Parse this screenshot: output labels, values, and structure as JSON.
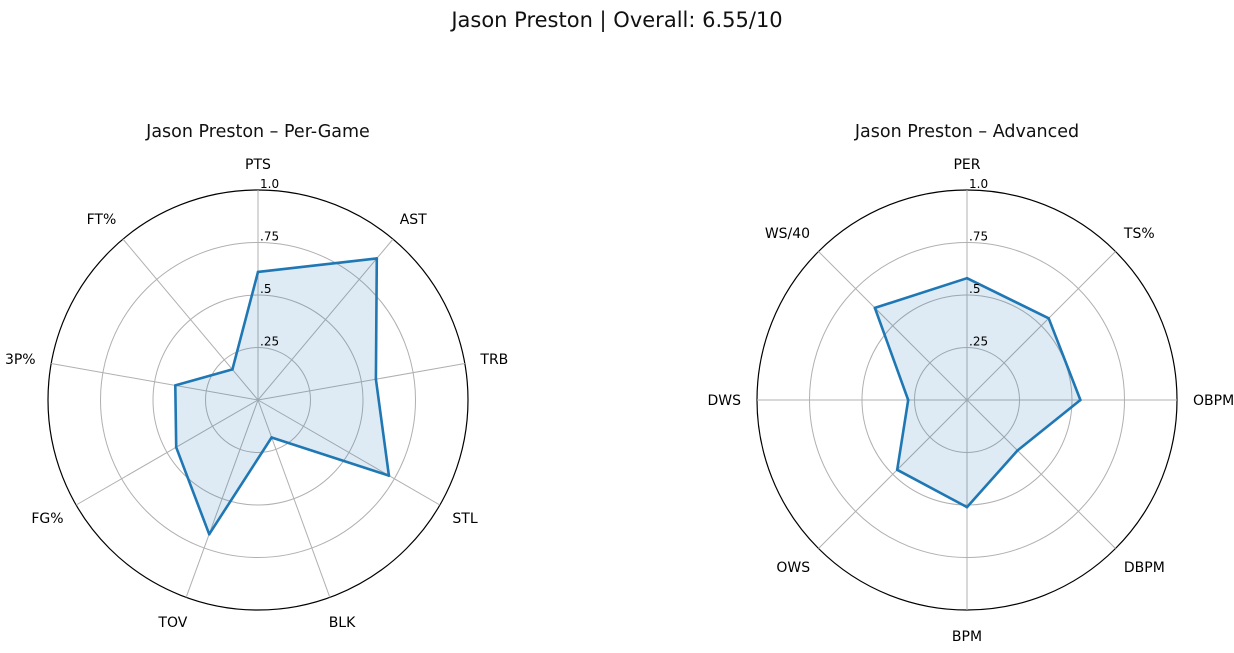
{
  "figure": {
    "title": "Jason Preston | Overall: 6.55/10"
  },
  "chart_data": [
    {
      "type": "radar",
      "title": "Jason Preston – Per-Game",
      "categories": [
        "PTS",
        "AST",
        "TRB",
        "STL",
        "BLK",
        "TOV",
        "FG%",
        "3P%",
        "FT%"
      ],
      "values": [
        0.61,
        0.88,
        0.57,
        0.72,
        0.19,
        0.68,
        0.45,
        0.4,
        0.19
      ],
      "rlim": [
        0,
        1.0
      ],
      "rticks": [
        0.25,
        0.5,
        0.75,
        1.0
      ],
      "rtick_labels": [
        ".25",
        ".5",
        ".75",
        "1.0"
      ],
      "grid": true,
      "color": "#1f77b4",
      "fill_color": "#1f77b4",
      "fill_opacity": 0.15
    },
    {
      "type": "radar",
      "title": "Jason Preston – Advanced",
      "categories": [
        "PER",
        "TS%",
        "OBPM",
        "DBPM",
        "BPM",
        "OWS",
        "DWS",
        "WS/40"
      ],
      "values": [
        0.58,
        0.55,
        0.54,
        0.34,
        0.51,
        0.47,
        0.28,
        0.62
      ],
      "rlim": [
        0,
        1.0
      ],
      "rticks": [
        0.25,
        0.5,
        0.75,
        1.0
      ],
      "rtick_labels": [
        ".25",
        ".5",
        ".75",
        "1.0"
      ],
      "grid": true,
      "color": "#1f77b4",
      "fill_color": "#1f77b4",
      "fill_opacity": 0.15
    }
  ]
}
